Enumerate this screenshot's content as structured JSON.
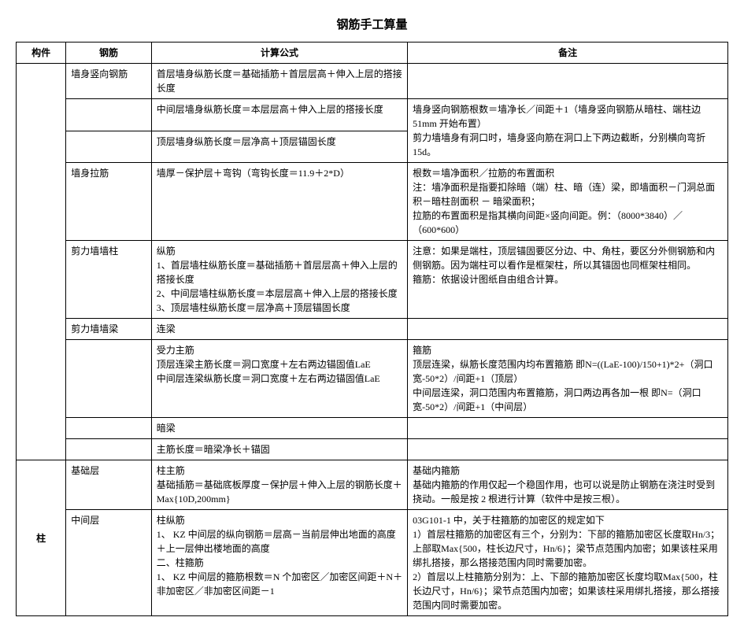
{
  "title": "钢筋手工算量",
  "headers": {
    "component": "构件",
    "rebar": "钢筋",
    "formula": "计算公式",
    "remark": "备注"
  },
  "rows": [
    {
      "rebar": "墙身竖向钢筋",
      "formula": "首层墙身纵筋长度＝基础插筋＋首层层高＋伸入上层的搭接长度",
      "remark": "",
      "remark_rowspan": 0
    },
    {
      "rebar": "",
      "formula": "中间层墙身纵筋长度＝本层层高＋伸入上层的搭接长度",
      "remark": "墙身竖向钢筋根数＝墙净长／间距＋1（墙身竖向钢筋从暗柱、端柱边 51mm 开始布置）\n剪力墙墙身有洞口时，墙身竖向筋在洞口上下两边截断，分别横向弯折15d。",
      "remark_rowspan": 2
    },
    {
      "rebar": "",
      "formula": "顶层墙身纵筋长度＝层净高＋顶层锚固长度",
      "remark": ""
    },
    {
      "rebar": "墙身拉筋",
      "formula": "墙厚－保护层＋弯钩（弯钩长度＝11.9＋2*D）",
      "remark": "根数＝墙净面积／拉筋的布置面积\n注：墙净面积是指要扣除暗（端）柱、暗（连）梁，即墙面积－门洞总面积－暗柱剖面积 － 暗梁面积；\n拉筋的布置面积是指其横向间距×竖向间距。例：（8000*3840）／（600*600）"
    },
    {
      "rebar": "剪力墙墙柱",
      "formula": "纵筋\n1、首层墙柱纵筋长度＝基础插筋＋首层层高＋伸入上层的搭接长度\n2、中间层墙柱纵筋长度＝本层层高＋伸入上层的搭接长度\n3、顶层墙柱纵筋长度＝层净高＋顶层锚固长度",
      "remark": "注意：如果是端柱，顶层锚固要区分边、中、角柱，要区分外侧钢筋和内侧钢筋。因为端柱可以看作是框架柱，所以其锚固也同框架柱相同。\n箍筋：依据设计图纸自由组合计算。"
    },
    {
      "rebar": "剪力墙墙梁",
      "formula": "连梁",
      "remark": ""
    },
    {
      "rebar": "",
      "formula": "受力主筋\n顶层连梁主筋长度＝洞口宽度＋左右两边锚固值LaE\n中间层连梁纵筋长度＝洞口宽度＋左右两边锚固值LaE",
      "remark": "箍筋\n顶层连梁，纵筋长度范围内均布置箍筋 即N=((LaE-100)/150+1)*2+（洞口宽-50*2）/间距+1（顶层）\n中间层连梁，洞口范围内布置箍筋，洞口两边再各加一根 即N=（洞口宽-50*2）/间距+1（中间层）"
    },
    {
      "rebar": "",
      "formula": "暗梁",
      "remark": ""
    },
    {
      "rebar": "",
      "formula": "主筋长度＝暗梁净长＋锚固",
      "remark": ""
    }
  ],
  "column_rows": [
    {
      "component": "柱",
      "component_rowspan": 2,
      "rebar": "基础层",
      "formula": "柱主筋\n基础插筋＝基础底板厚度－保护层＋伸入上层的钢筋长度＋Max{10D,200mm}",
      "remark": "基础内箍筋\n基础内箍筋的作用仅起一个稳固作用，也可以说是防止钢筋在浇注时受到挠动。一般是按 2 根进行计算（软件中是按三根）。"
    },
    {
      "rebar": "中间层",
      "formula": "柱纵筋\n1、 KZ 中间层的纵向钢筋＝层高－当前层伸出地面的高度＋上一层伸出楼地面的高度\n二、柱箍筋\n1、 KZ 中间层的箍筋根数＝N 个加密区／加密区间距＋N＋非加密区／非加密区间距－1",
      "remark": "03G101-1 中，关于柱箍筋的加密区的规定如下\n1）首层柱箍筋的加密区有三个，分别为：下部的箍筋加密区长度取Hn/3；上部取Max{500，柱长边尺寸，Hn/6}；梁节点范围内加密；如果该柱采用绑扎搭接，那么搭接范围内同时需要加密。\n2）首层以上柱箍筋分别为：上、下部的箍筋加密区长度均取Max{500，柱长边尺寸，Hn/6}；梁节点范围内加密；如果该柱采用绑扎搭接，那么搭接范围内同时需要加密。"
    }
  ],
  "style": {
    "font_family": "SimSun",
    "title_fontsize": 15,
    "body_fontsize": 12,
    "border_color": "#000000",
    "background_color": "#ffffff",
    "text_color": "#000000",
    "col_widths_pct": [
      7,
      12,
      36,
      45
    ]
  }
}
